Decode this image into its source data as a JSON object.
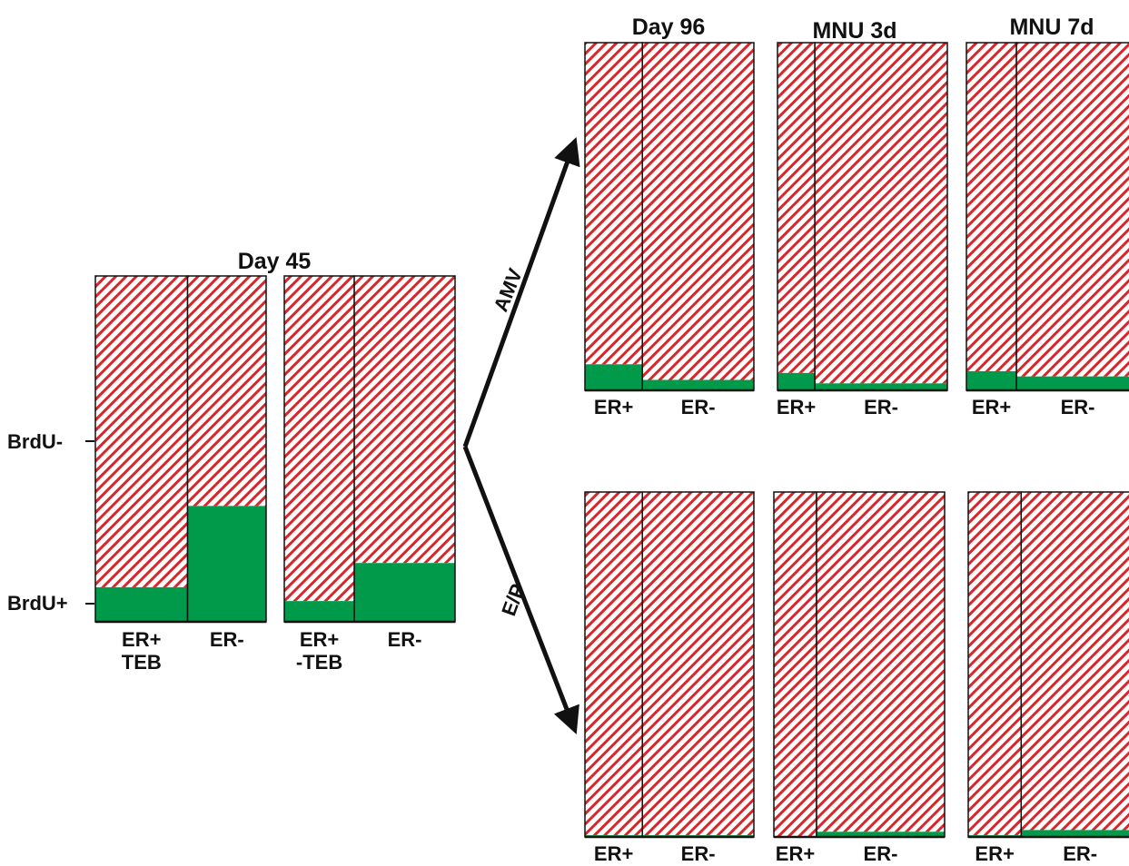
{
  "colors": {
    "brdu_negative_hatch": "#d9262b",
    "brdu_positive_fill": "#009a4a",
    "outline": "#111111"
  },
  "axis_labels": {
    "top": "BrdU-",
    "bottom": "BrdU+"
  },
  "arrows": {
    "upper": "AMV",
    "lower": "E/P"
  },
  "panels": [
    {
      "id": "day45-teb",
      "title": "Day 45",
      "columns": [
        {
          "label": "ER+\nTEB",
          "width_share": 0.54,
          "brdu_positive": 0.1
        },
        {
          "label": "ER-",
          "width_share": 0.46,
          "brdu_positive": 0.335
        }
      ]
    },
    {
      "id": "day45-nonteb",
      "title": "",
      "columns": [
        {
          "label": "ER+\n-TEB",
          "width_share": 0.41,
          "brdu_positive": 0.06
        },
        {
          "label": "ER-",
          "width_share": 0.59,
          "brdu_positive": 0.17
        }
      ]
    },
    {
      "id": "amv-day96",
      "title": "Day 96",
      "columns": [
        {
          "label": "ER+",
          "width_share": 0.34,
          "brdu_positive": 0.075
        },
        {
          "label": "ER-",
          "width_share": 0.66,
          "brdu_positive": 0.03
        }
      ]
    },
    {
      "id": "amv-mnu3d",
      "title": "MNU 3d",
      "columns": [
        {
          "label": "ER+",
          "width_share": 0.22,
          "brdu_positive": 0.05
        },
        {
          "label": "ER-",
          "width_share": 0.78,
          "brdu_positive": 0.02
        }
      ]
    },
    {
      "id": "amv-mnu7d",
      "title": "MNU 7d",
      "columns": [
        {
          "label": "ER+",
          "width_share": 0.29,
          "brdu_positive": 0.055
        },
        {
          "label": "ER-",
          "width_share": 0.71,
          "brdu_positive": 0.04
        }
      ]
    },
    {
      "id": "ep-day96",
      "title": "",
      "columns": [
        {
          "label": "ER+",
          "width_share": 0.34,
          "brdu_positive": 0.005
        },
        {
          "label": "ER-",
          "width_share": 0.66,
          "brdu_positive": 0.005
        }
      ]
    },
    {
      "id": "ep-mnu3d",
      "title": "",
      "columns": [
        {
          "label": "ER+",
          "width_share": 0.25,
          "brdu_positive": 0.0
        },
        {
          "label": "ER-",
          "width_share": 0.75,
          "brdu_positive": 0.015
        }
      ]
    },
    {
      "id": "ep-mnu7d",
      "title": "",
      "columns": [
        {
          "label": "ER+",
          "width_share": 0.31,
          "brdu_positive": 0.005
        },
        {
          "label": "ER-",
          "width_share": 0.69,
          "brdu_positive": 0.02
        }
      ]
    }
  ]
}
